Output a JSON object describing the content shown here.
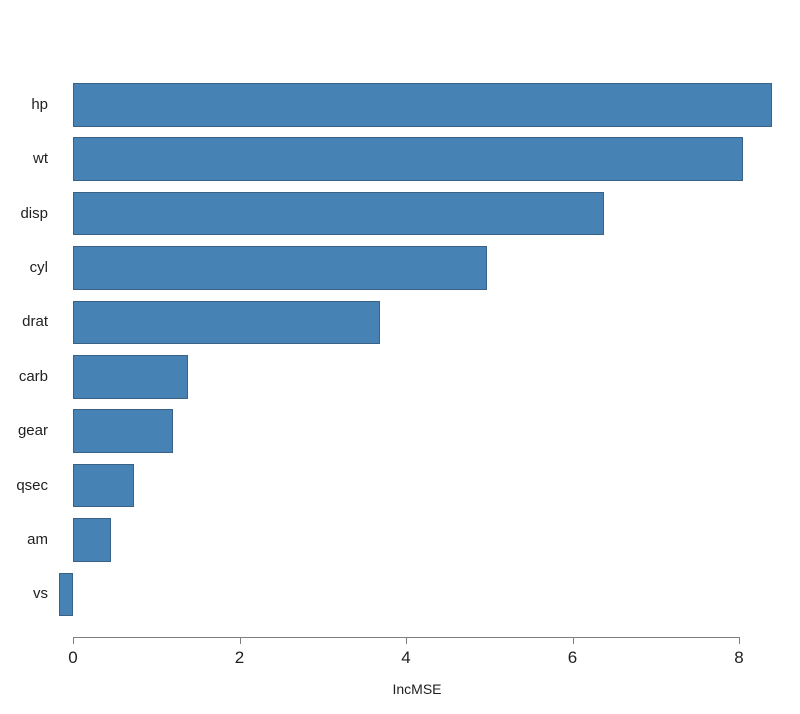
{
  "chart_data": {
    "type": "bar",
    "orientation": "horizontal",
    "title": "",
    "xlabel": "IncMSE",
    "ylabel": "",
    "categories": [
      "hp",
      "wt",
      "disp",
      "cyl",
      "drat",
      "carb",
      "gear",
      "qsec",
      "am",
      "vs"
    ],
    "values": [
      8.4,
      8.05,
      6.38,
      4.97,
      3.69,
      1.38,
      1.2,
      0.73,
      0.46,
      -0.17
    ],
    "xlim": [
      0,
      8
    ],
    "x_ticks": [
      0,
      2,
      4,
      6,
      8
    ],
    "grid": false,
    "legend": null,
    "background_color": "#ffffff",
    "bar_fill_color": "#4682B4",
    "bar_border_color": "#3A6286",
    "axis_color": "#7F7F7F",
    "text_color": "#1F1F1F"
  }
}
